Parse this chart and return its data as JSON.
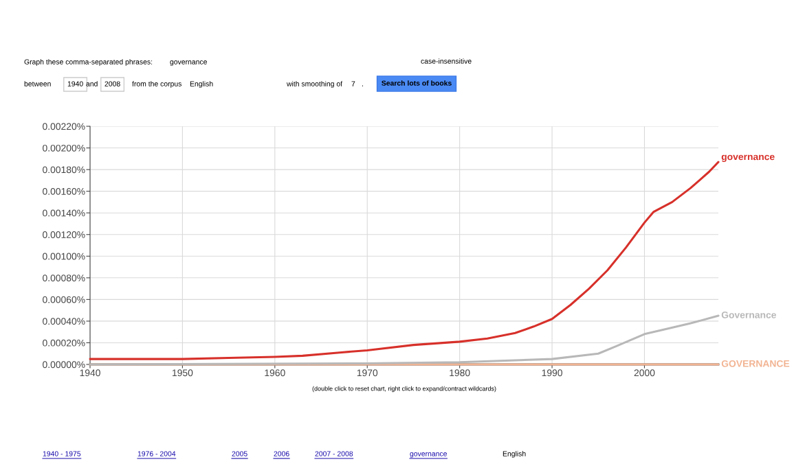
{
  "chart_data": {
    "type": "line",
    "xlim": [
      1940,
      2008
    ],
    "xticks": [
      1940,
      1950,
      1960,
      1970,
      1980,
      1990,
      2000
    ],
    "ylim": [
      0,
      0.0022
    ],
    "yticks": [
      {
        "value": 0,
        "label": "0.00000%"
      },
      {
        "value": 0.0002,
        "label": "0.00020%"
      },
      {
        "value": 0.0004,
        "label": "0.00040%"
      },
      {
        "value": 0.0006,
        "label": "0.00060%"
      },
      {
        "value": 0.0008,
        "label": "0.00080%"
      },
      {
        "value": 0.001,
        "label": "0.00100%"
      },
      {
        "value": 0.0012,
        "label": "0.00120%"
      },
      {
        "value": 0.0014,
        "label": "0.00140%"
      },
      {
        "value": 0.0016,
        "label": "0.00160%"
      },
      {
        "value": 0.0018,
        "label": "0.00180%"
      },
      {
        "value": 0.002,
        "label": "0.00200%"
      },
      {
        "value": 0.0022,
        "label": "0.00220%"
      }
    ],
    "grid": true,
    "legend": false,
    "marker": "none",
    "line_style": "solid",
    "series": [
      {
        "name": "GOVERNANCE",
        "color": "#f2b493",
        "x": [
          1940,
          1970,
          1990,
          2000,
          2008
        ],
        "values": [
          0,
          0,
          0,
          0,
          0
        ]
      },
      {
        "name": "Governance",
        "color": "#b8b8b8",
        "x": [
          1940,
          1970,
          1980,
          1990,
          1995,
          1997,
          2000,
          2002,
          2005,
          2008
        ],
        "values": [
          0,
          1e-05,
          2e-05,
          5e-05,
          0.0001,
          0.00017,
          0.00028,
          0.00032,
          0.00038,
          0.00045
        ]
      },
      {
        "name": "governance",
        "color": "#d7302a",
        "x": [
          1940,
          1945,
          1950,
          1955,
          1960,
          1963,
          1967,
          1970,
          1975,
          1980,
          1983,
          1986,
          1988,
          1990,
          1992,
          1994,
          1996,
          1998,
          2000,
          2001,
          2003,
          2005,
          2007,
          2008
        ],
        "values": [
          5e-05,
          5e-05,
          5e-05,
          6e-05,
          7e-05,
          8e-05,
          0.00011,
          0.00013,
          0.00018,
          0.00021,
          0.00024,
          0.00029,
          0.00035,
          0.00042,
          0.00055,
          0.0007,
          0.00087,
          0.00108,
          0.00131,
          0.00141,
          0.0015,
          0.00163,
          0.00178,
          0.00187
        ]
      }
    ],
    "annotations": [
      "Graph these comma-separated phrases:",
      "governance",
      "case-insensitive",
      "between",
      "1940",
      "and",
      "2008",
      "from the corpus",
      "English",
      "with smoothing of",
      "7",
      ".",
      "Search lots of books",
      "(double click to reset chart, right click to expand/contract wildcards)",
      "1940 - 1975",
      "1976 - 2004",
      "2005",
      "2006",
      "2007 - 2008",
      "governance",
      "English"
    ]
  }
}
